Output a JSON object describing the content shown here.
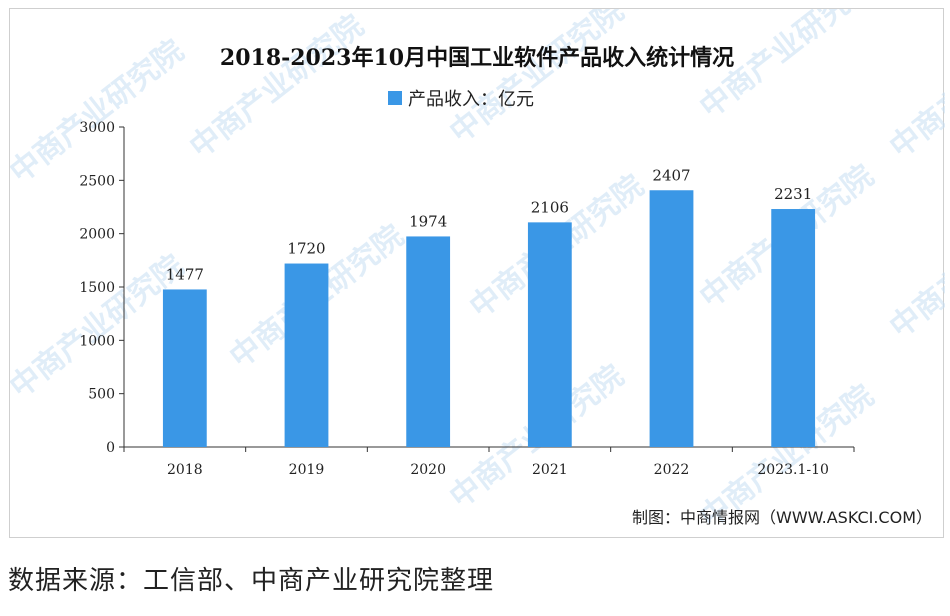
{
  "chart_data": {
    "type": "bar",
    "title": "2018-2023年10月中国工业软件产品收入统计情况",
    "series": [
      {
        "name": "产品收入：亿元",
        "color": "#3a97e6",
        "values": [
          1477,
          1720,
          1974,
          2106,
          2407,
          2231
        ]
      }
    ],
    "categories": [
      "2018",
      "2019",
      "2020",
      "2021",
      "2022",
      "2023.1-10"
    ],
    "ylim": [
      0,
      3000
    ],
    "yticks": [
      0,
      500,
      1000,
      1500,
      2000,
      2500,
      3000
    ],
    "legend_position": "top-center",
    "grid": false
  },
  "credit": "制图：中商情报网（WWW.ASKCI.COM）",
  "source_note": "数据来源：工信部、中商产业研究院整理",
  "watermark": "中商产业研究院"
}
